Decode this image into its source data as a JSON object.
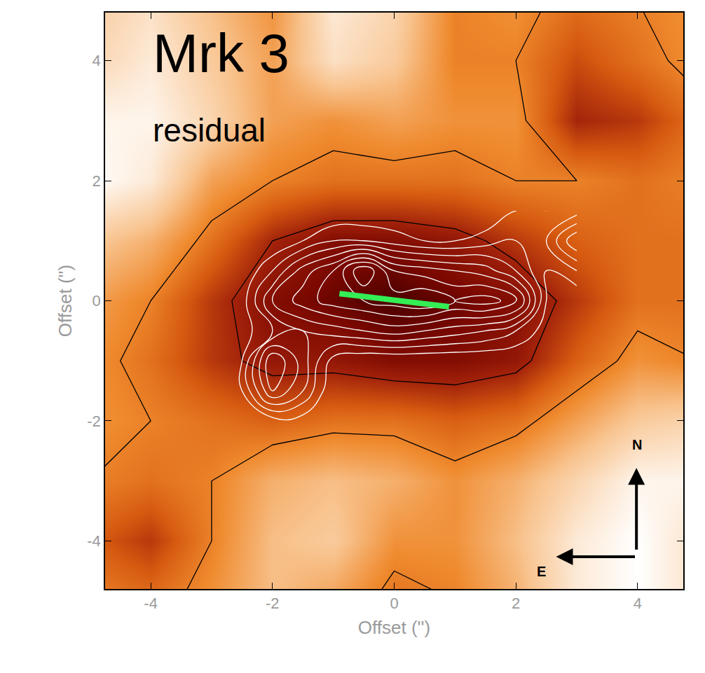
{
  "chart_data": {
    "type": "heatmap",
    "title": "Mrk 3",
    "subtitle": "residual",
    "xlabel": "Offset ('')",
    "ylabel": "Offset ('')",
    "xlim": [
      -4.75,
      4.75
    ],
    "ylim": [
      -4.8,
      4.8
    ],
    "xticks": [
      -4,
      -2,
      0,
      2,
      4
    ],
    "yticks": [
      -4,
      -2,
      0,
      2,
      4
    ],
    "grid": false,
    "tick_labels": true,
    "x": [
      -5,
      -4,
      -3,
      -2,
      -1,
      0,
      1,
      2,
      3,
      4,
      5
    ],
    "y": [
      -5,
      -4,
      -3,
      -2,
      -1,
      0,
      1,
      2,
      3,
      4,
      5
    ],
    "z": [
      [
        0.55,
        0.6,
        0.5,
        0.35,
        0.45,
        0.6,
        0.55,
        0.4,
        0.15,
        0.05,
        0.2
      ],
      [
        0.65,
        0.75,
        0.55,
        0.35,
        0.3,
        0.5,
        0.5,
        0.35,
        0.15,
        0.05,
        0.2
      ],
      [
        0.55,
        0.6,
        0.55,
        0.4,
        0.35,
        0.4,
        0.5,
        0.4,
        0.25,
        0.1,
        0.1
      ],
      [
        0.5,
        0.55,
        0.6,
        0.65,
        0.6,
        0.6,
        0.65,
        0.6,
        0.45,
        0.3,
        0.25
      ],
      [
        0.5,
        0.6,
        0.75,
        0.85,
        0.85,
        0.9,
        0.9,
        0.85,
        0.65,
        0.5,
        0.55
      ],
      [
        0.45,
        0.55,
        0.75,
        0.9,
        0.95,
        1.0,
        0.95,
        0.9,
        0.75,
        0.6,
        0.6
      ],
      [
        0.3,
        0.4,
        0.6,
        0.8,
        0.9,
        0.9,
        0.85,
        0.75,
        0.65,
        0.6,
        0.6
      ],
      [
        0.05,
        0.15,
        0.45,
        0.55,
        0.6,
        0.6,
        0.6,
        0.55,
        0.55,
        0.6,
        0.55
      ],
      [
        0.1,
        0.1,
        0.25,
        0.45,
        0.5,
        0.45,
        0.5,
        0.5,
        0.8,
        0.75,
        0.6
      ],
      [
        0.25,
        0.15,
        0.3,
        0.45,
        0.2,
        0.3,
        0.55,
        0.55,
        0.7,
        0.6,
        0.5
      ],
      [
        0.3,
        0.2,
        0.35,
        0.5,
        0.15,
        0.25,
        0.55,
        0.5,
        0.6,
        0.55,
        0.5
      ]
    ],
    "contour_levels": [
      0.55,
      0.8
    ],
    "overlay": {
      "x": [
        -3,
        -2.5,
        -2,
        -1.5,
        -1,
        -0.5,
        0,
        0.5,
        1,
        1.5,
        2,
        2.5,
        3
      ],
      "y": [
        -2,
        -1.5,
        -1,
        -0.5,
        0,
        0.5,
        1,
        1.5
      ],
      "z": [
        [
          0,
          0,
          0.05,
          0.05,
          0,
          0,
          0,
          0,
          0,
          0,
          0,
          0,
          0
        ],
        [
          0,
          0.1,
          0.5,
          0.3,
          0,
          0,
          0,
          0,
          0,
          0,
          0,
          0,
          0
        ],
        [
          0,
          0.1,
          0.6,
          0.35,
          0.05,
          0,
          0,
          0,
          0,
          0,
          0,
          0,
          0
        ],
        [
          0,
          0.05,
          0.2,
          0.3,
          0.35,
          0.4,
          0.45,
          0.4,
          0.35,
          0.3,
          0.2,
          0.05,
          0
        ],
        [
          0,
          0.05,
          0.4,
          0.55,
          0.65,
          0.7,
          0.75,
          0.8,
          0.7,
          0.75,
          0.65,
          0.1,
          0
        ],
        [
          0,
          0,
          0.2,
          0.45,
          0.6,
          0.9,
          0.6,
          0.55,
          0.5,
          0.45,
          0.3,
          0.1,
          0.2
        ],
        [
          0,
          0,
          0,
          0.1,
          0.2,
          0.2,
          0.15,
          0.1,
          0.1,
          0.15,
          0.2,
          0.2,
          0.5
        ],
        [
          0,
          0,
          0,
          0,
          0,
          0,
          0,
          0,
          0,
          0,
          0.1,
          0.1,
          0.15
        ]
      ],
      "levels": [
        0.1,
        0.2,
        0.3,
        0.4,
        0.5,
        0.6,
        0.7,
        0.8
      ]
    },
    "jet": {
      "x": [
        -0.9,
        0.9
      ],
      "y": [
        0.12,
        -0.1
      ],
      "color": "#33ee55"
    },
    "compass": {
      "north": "N",
      "east": "E"
    }
  }
}
